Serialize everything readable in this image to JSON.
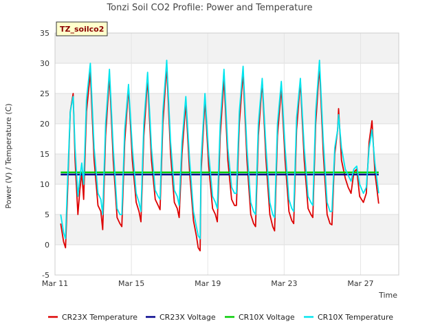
{
  "chart_data": {
    "type": "line",
    "title": "Tonzi Soil CO2 Profile: Power and Temperature",
    "badge": "TZ_soilco2",
    "xlabel": "Time",
    "ylabel": "Power (V) / Temperature (C)",
    "xlim": [
      0,
      18
    ],
    "ylim": [
      -5,
      35
    ],
    "yticks": [
      -5,
      0,
      5,
      10,
      15,
      20,
      25,
      30,
      35
    ],
    "xticks": [
      {
        "value": 0,
        "label": "Mar 11"
      },
      {
        "value": 4,
        "label": "Mar 15"
      },
      {
        "value": 8,
        "label": "Mar 19"
      },
      {
        "value": 12,
        "label": "Mar 23"
      },
      {
        "value": 16,
        "label": "Mar 27"
      }
    ],
    "grid": true,
    "legend_position": "bottom",
    "series": [
      {
        "name": "CR23X Temperature",
        "color": "#dd0000",
        "points": [
          [
            0.3,
            3.5
          ],
          [
            0.45,
            0.5
          ],
          [
            0.55,
            -0.5
          ],
          [
            0.65,
            8
          ],
          [
            0.8,
            22
          ],
          [
            0.95,
            25
          ],
          [
            1.05,
            14
          ],
          [
            1.2,
            5
          ],
          [
            1.3,
            9
          ],
          [
            1.4,
            12
          ],
          [
            1.5,
            7.5
          ],
          [
            1.65,
            22
          ],
          [
            1.85,
            28.5
          ],
          [
            2.05,
            14
          ],
          [
            2.25,
            6.5
          ],
          [
            2.4,
            5.5
          ],
          [
            2.5,
            2.5
          ],
          [
            2.65,
            18
          ],
          [
            2.85,
            28
          ],
          [
            3.05,
            14
          ],
          [
            3.25,
            4.5
          ],
          [
            3.4,
            3.5
          ],
          [
            3.5,
            3
          ],
          [
            3.65,
            17
          ],
          [
            3.85,
            26
          ],
          [
            4.05,
            14
          ],
          [
            4.25,
            7
          ],
          [
            4.4,
            5.5
          ],
          [
            4.5,
            3.8
          ],
          [
            4.65,
            18
          ],
          [
            4.85,
            27.5
          ],
          [
            5.05,
            14
          ],
          [
            5.25,
            7.5
          ],
          [
            5.4,
            6.5
          ],
          [
            5.5,
            5.8
          ],
          [
            5.65,
            20
          ],
          [
            5.85,
            29.5
          ],
          [
            6.05,
            15
          ],
          [
            6.25,
            7
          ],
          [
            6.4,
            6
          ],
          [
            6.5,
            4.5
          ],
          [
            6.65,
            15
          ],
          [
            6.85,
            23.5
          ],
          [
            7.05,
            12
          ],
          [
            7.25,
            4
          ],
          [
            7.4,
            1.5
          ],
          [
            7.5,
            -0.5
          ],
          [
            7.6,
            -1
          ],
          [
            7.65,
            12
          ],
          [
            7.85,
            24
          ],
          [
            8.05,
            13
          ],
          [
            8.25,
            6
          ],
          [
            8.4,
            5
          ],
          [
            8.5,
            3.8
          ],
          [
            8.65,
            18
          ],
          [
            8.85,
            27.5
          ],
          [
            9.05,
            14
          ],
          [
            9.25,
            7.5
          ],
          [
            9.4,
            6.5
          ],
          [
            9.5,
            6.5
          ],
          [
            9.65,
            20
          ],
          [
            9.85,
            28.5
          ],
          [
            10.05,
            14
          ],
          [
            10.25,
            5
          ],
          [
            10.4,
            3.5
          ],
          [
            10.5,
            3
          ],
          [
            10.65,
            18
          ],
          [
            10.85,
            27
          ],
          [
            11.05,
            14
          ],
          [
            11.25,
            5
          ],
          [
            11.4,
            3
          ],
          [
            11.5,
            2.3
          ],
          [
            11.65,
            18
          ],
          [
            11.85,
            26
          ],
          [
            12.05,
            14
          ],
          [
            12.25,
            5.5
          ],
          [
            12.4,
            4
          ],
          [
            12.5,
            3.5
          ],
          [
            12.65,
            19
          ],
          [
            12.85,
            27
          ],
          [
            13.05,
            14
          ],
          [
            13.25,
            6
          ],
          [
            13.4,
            5
          ],
          [
            13.5,
            4.5
          ],
          [
            13.65,
            20
          ],
          [
            13.85,
            29.5
          ],
          [
            14.05,
            15
          ],
          [
            14.25,
            5
          ],
          [
            14.4,
            3.5
          ],
          [
            14.5,
            3.3
          ],
          [
            14.65,
            15
          ],
          [
            14.8,
            19
          ],
          [
            14.85,
            22.5
          ],
          [
            15.0,
            14
          ],
          [
            15.2,
            11
          ],
          [
            15.35,
            9.5
          ],
          [
            15.5,
            8.5
          ],
          [
            15.65,
            12
          ],
          [
            15.8,
            12.5
          ],
          [
            15.95,
            8
          ],
          [
            16.15,
            7
          ],
          [
            16.3,
            8.5
          ],
          [
            16.45,
            17
          ],
          [
            16.6,
            20.5
          ],
          [
            16.75,
            12
          ],
          [
            16.95,
            6.8
          ]
        ]
      },
      {
        "name": "CR23X Voltage",
        "color": "#00008b",
        "points": [
          [
            0.3,
            11.6
          ],
          [
            16.95,
            11.6
          ]
        ]
      },
      {
        "name": "CR10X Voltage",
        "color": "#00cc00",
        "points": [
          [
            0.3,
            11.95
          ],
          [
            16.95,
            11.95
          ]
        ]
      },
      {
        "name": "CR10X Temperature",
        "color": "#00e5ee",
        "points": [
          [
            0.3,
            5
          ],
          [
            0.45,
            2
          ],
          [
            0.55,
            1
          ],
          [
            0.65,
            10
          ],
          [
            0.8,
            22
          ],
          [
            0.95,
            24.5
          ],
          [
            1.05,
            16
          ],
          [
            1.2,
            8
          ],
          [
            1.3,
            11
          ],
          [
            1.4,
            13.5
          ],
          [
            1.5,
            10
          ],
          [
            1.65,
            24
          ],
          [
            1.85,
            30
          ],
          [
            2.05,
            16
          ],
          [
            2.25,
            8.5
          ],
          [
            2.4,
            7.5
          ],
          [
            2.5,
            5
          ],
          [
            2.65,
            20
          ],
          [
            2.85,
            29
          ],
          [
            3.05,
            16
          ],
          [
            3.25,
            6
          ],
          [
            3.4,
            5
          ],
          [
            3.5,
            5
          ],
          [
            3.65,
            19
          ],
          [
            3.85,
            26.5
          ],
          [
            4.05,
            16
          ],
          [
            4.25,
            8.5
          ],
          [
            4.4,
            7
          ],
          [
            4.5,
            5.5
          ],
          [
            4.65,
            20
          ],
          [
            4.85,
            28.5
          ],
          [
            5.05,
            16
          ],
          [
            5.25,
            9
          ],
          [
            5.4,
            8
          ],
          [
            5.5,
            7.5
          ],
          [
            5.65,
            22
          ],
          [
            5.85,
            30.5
          ],
          [
            6.05,
            17
          ],
          [
            6.25,
            9
          ],
          [
            6.4,
            8
          ],
          [
            6.5,
            6.5
          ],
          [
            6.65,
            17
          ],
          [
            6.85,
            24.5
          ],
          [
            7.05,
            14
          ],
          [
            7.25,
            5.5
          ],
          [
            7.4,
            3
          ],
          [
            7.5,
            1.5
          ],
          [
            7.6,
            1
          ],
          [
            7.65,
            14
          ],
          [
            7.85,
            25
          ],
          [
            8.05,
            15
          ],
          [
            8.25,
            8
          ],
          [
            8.4,
            7
          ],
          [
            8.5,
            6
          ],
          [
            8.65,
            20
          ],
          [
            8.85,
            29
          ],
          [
            9.05,
            16
          ],
          [
            9.25,
            9.5
          ],
          [
            9.4,
            8.5
          ],
          [
            9.5,
            8.5
          ],
          [
            9.65,
            22
          ],
          [
            9.85,
            29.5
          ],
          [
            10.05,
            16
          ],
          [
            10.25,
            7
          ],
          [
            10.4,
            5.5
          ],
          [
            10.5,
            5
          ],
          [
            10.65,
            20
          ],
          [
            10.85,
            27.5
          ],
          [
            11.05,
            16
          ],
          [
            11.25,
            7
          ],
          [
            11.4,
            5
          ],
          [
            11.5,
            4.5
          ],
          [
            11.65,
            20
          ],
          [
            11.85,
            27
          ],
          [
            12.05,
            16
          ],
          [
            12.25,
            7.5
          ],
          [
            12.4,
            6
          ],
          [
            12.5,
            5.5
          ],
          [
            12.65,
            21
          ],
          [
            12.85,
            27.5
          ],
          [
            13.05,
            16
          ],
          [
            13.25,
            8
          ],
          [
            13.4,
            7
          ],
          [
            13.5,
            6.5
          ],
          [
            13.65,
            22
          ],
          [
            13.85,
            30.5
          ],
          [
            14.05,
            17
          ],
          [
            14.25,
            7
          ],
          [
            14.4,
            5.5
          ],
          [
            14.5,
            5.5
          ],
          [
            14.65,
            16
          ],
          [
            14.8,
            19
          ],
          [
            14.85,
            21.5
          ],
          [
            15.0,
            16
          ],
          [
            15.2,
            12.5
          ],
          [
            15.35,
            11.5
          ],
          [
            15.5,
            10.5
          ],
          [
            15.65,
            12.5
          ],
          [
            15.8,
            13
          ],
          [
            15.95,
            10
          ],
          [
            16.15,
            8.5
          ],
          [
            16.3,
            9.5
          ],
          [
            16.45,
            16
          ],
          [
            16.6,
            19
          ],
          [
            16.75,
            13.5
          ],
          [
            16.95,
            8.5
          ]
        ]
      }
    ]
  }
}
